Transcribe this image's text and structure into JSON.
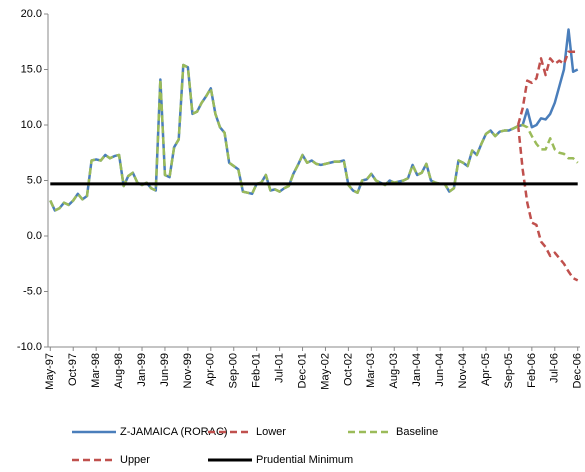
{
  "chart_data": {
    "type": "line",
    "categories": [
      "May-97",
      null,
      null,
      null,
      null,
      "Oct-97",
      null,
      null,
      null,
      null,
      "Mar-98",
      null,
      null,
      null,
      null,
      "Aug-98",
      null,
      null,
      null,
      null,
      "Jan-99",
      null,
      null,
      null,
      null,
      "Jun-99",
      null,
      null,
      null,
      null,
      "Nov-99",
      null,
      null,
      null,
      null,
      "Apr-00",
      null,
      null,
      null,
      null,
      "Sep-00",
      null,
      null,
      null,
      null,
      "Feb-01",
      null,
      null,
      null,
      null,
      "Jul-01",
      null,
      null,
      null,
      null,
      "Dec-01",
      null,
      null,
      null,
      null,
      "May-02",
      null,
      null,
      null,
      null,
      "Oct-02",
      null,
      null,
      null,
      null,
      "Mar-03",
      null,
      null,
      null,
      null,
      "Aug-03",
      null,
      null,
      null,
      null,
      "Jan-04",
      null,
      null,
      null,
      null,
      "Jun-04",
      null,
      null,
      null,
      null,
      "Nov-04",
      null,
      null,
      null,
      null,
      "Apr-05",
      null,
      null,
      null,
      null,
      "Sep-05",
      null,
      null,
      null,
      null,
      "Feb-06",
      null,
      null,
      null,
      null,
      "Jul-06",
      null,
      null,
      null,
      null,
      "Dec-06"
    ],
    "series": [
      {
        "name": "Z-JAMAICA (RORAC)",
        "color": "#4a7ebb",
        "dash": false,
        "values": [
          3.2,
          2.3,
          2.5,
          3.0,
          2.8,
          3.2,
          3.8,
          3.3,
          3.6,
          6.8,
          6.9,
          6.8,
          7.3,
          7.0,
          7.2,
          7.3,
          4.5,
          5.4,
          5.7,
          4.8,
          4.6,
          4.8,
          4.3,
          4.1,
          14.1,
          5.5,
          5.3,
          8.0,
          8.7,
          15.4,
          15.2,
          11.0,
          11.2,
          12.0,
          12.6,
          13.3,
          11.0,
          9.8,
          9.3,
          6.6,
          6.3,
          6.0,
          4.0,
          3.9,
          3.8,
          4.7,
          4.8,
          5.5,
          4.1,
          4.2,
          4.0,
          4.3,
          4.5,
          5.6,
          6.4,
          7.3,
          6.6,
          6.8,
          6.5,
          6.4,
          6.5,
          6.6,
          6.7,
          6.7,
          6.8,
          4.6,
          4.1,
          3.9,
          5.0,
          5.1,
          5.6,
          5.0,
          4.8,
          4.6,
          5.0,
          4.8,
          4.9,
          5.0,
          5.2,
          6.4,
          5.5,
          5.7,
          6.5,
          5.0,
          4.8,
          4.7,
          4.7,
          4.0,
          4.3,
          6.8,
          6.6,
          6.3,
          7.7,
          7.3,
          8.3,
          9.2,
          9.5,
          9.0,
          9.4,
          9.5,
          9.5,
          9.7,
          9.9,
          10.0,
          11.4,
          9.8,
          10.0,
          10.6,
          10.5,
          11.0,
          12.0,
          13.5,
          15.0,
          18.6,
          14.8,
          15.0
        ]
      },
      {
        "name": "Lower",
        "color": "#c0504d",
        "dash": true,
        "values": [
          null,
          null,
          null,
          null,
          null,
          null,
          null,
          null,
          null,
          null,
          null,
          null,
          null,
          null,
          null,
          null,
          null,
          null,
          null,
          null,
          null,
          null,
          null,
          null,
          null,
          null,
          null,
          null,
          null,
          null,
          null,
          null,
          null,
          null,
          null,
          null,
          null,
          null,
          null,
          null,
          null,
          null,
          null,
          null,
          null,
          null,
          null,
          null,
          null,
          null,
          null,
          null,
          null,
          null,
          null,
          null,
          null,
          null,
          null,
          null,
          null,
          null,
          null,
          null,
          null,
          null,
          null,
          null,
          null,
          null,
          null,
          null,
          null,
          null,
          null,
          null,
          null,
          null,
          null,
          null,
          null,
          null,
          null,
          null,
          null,
          null,
          null,
          null,
          null,
          null,
          null,
          null,
          null,
          null,
          null,
          null,
          null,
          null,
          null,
          null,
          null,
          null,
          10.0,
          6.0,
          3.0,
          1.2,
          1.0,
          -0.5,
          -1.0,
          -1.8,
          -1.5,
          -2.0,
          -2.5,
          -3.2,
          -3.8,
          -4.0
        ]
      },
      {
        "name": "Baseline",
        "color": "#9bbb59",
        "dash": true,
        "values": [
          3.2,
          2.3,
          2.5,
          3.0,
          2.8,
          3.2,
          3.8,
          3.3,
          3.6,
          6.8,
          6.9,
          6.8,
          7.3,
          7.0,
          7.2,
          7.3,
          4.5,
          5.4,
          5.7,
          4.8,
          4.6,
          4.8,
          4.3,
          4.1,
          14.1,
          5.5,
          5.3,
          8.0,
          8.7,
          15.4,
          15.2,
          11.0,
          11.2,
          12.0,
          12.6,
          13.3,
          11.0,
          9.8,
          9.3,
          6.6,
          6.3,
          6.0,
          4.0,
          3.9,
          3.8,
          4.7,
          4.8,
          5.5,
          4.1,
          4.2,
          4.0,
          4.3,
          4.5,
          5.6,
          6.4,
          7.3,
          6.6,
          6.8,
          6.5,
          6.4,
          6.5,
          6.6,
          6.7,
          6.7,
          6.8,
          4.6,
          4.1,
          3.9,
          5.0,
          5.1,
          5.6,
          5.0,
          4.8,
          4.6,
          5.0,
          4.8,
          4.9,
          5.0,
          5.2,
          6.4,
          5.5,
          5.7,
          6.5,
          5.0,
          4.8,
          4.7,
          4.7,
          4.0,
          4.3,
          6.8,
          6.6,
          6.3,
          7.7,
          7.3,
          8.3,
          9.2,
          9.5,
          9.0,
          9.4,
          9.5,
          9.5,
          9.7,
          9.9,
          10.0,
          9.8,
          9.0,
          8.3,
          7.8,
          7.8,
          8.8,
          7.8,
          7.5,
          7.4,
          7.0,
          7.0,
          6.6
        ]
      },
      {
        "name": "Upper",
        "color": "#c0504d",
        "dash": true,
        "values": [
          null,
          null,
          null,
          null,
          null,
          null,
          null,
          null,
          null,
          null,
          null,
          null,
          null,
          null,
          null,
          null,
          null,
          null,
          null,
          null,
          null,
          null,
          null,
          null,
          null,
          null,
          null,
          null,
          null,
          null,
          null,
          null,
          null,
          null,
          null,
          null,
          null,
          null,
          null,
          null,
          null,
          null,
          null,
          null,
          null,
          null,
          null,
          null,
          null,
          null,
          null,
          null,
          null,
          null,
          null,
          null,
          null,
          null,
          null,
          null,
          null,
          null,
          null,
          null,
          null,
          null,
          null,
          null,
          null,
          null,
          null,
          null,
          null,
          null,
          null,
          null,
          null,
          null,
          null,
          null,
          null,
          null,
          null,
          null,
          null,
          null,
          null,
          null,
          null,
          null,
          null,
          null,
          null,
          null,
          null,
          null,
          null,
          null,
          null,
          null,
          null,
          null,
          10.0,
          11.5,
          14.0,
          13.8,
          14.2,
          16.0,
          14.5,
          16.0,
          15.5,
          15.8,
          15.5,
          16.6,
          16.6,
          16.6
        ]
      },
      {
        "name": "Prudential Minimum",
        "color": "#000000",
        "dash": false,
        "values": [
          4.7,
          4.7,
          4.7,
          4.7,
          4.7,
          4.7,
          4.7,
          4.7,
          4.7,
          4.7,
          4.7,
          4.7,
          4.7,
          4.7,
          4.7,
          4.7,
          4.7,
          4.7,
          4.7,
          4.7,
          4.7,
          4.7,
          4.7,
          4.7,
          4.7,
          4.7,
          4.7,
          4.7,
          4.7,
          4.7,
          4.7,
          4.7,
          4.7,
          4.7,
          4.7,
          4.7,
          4.7,
          4.7,
          4.7,
          4.7,
          4.7,
          4.7,
          4.7,
          4.7,
          4.7,
          4.7,
          4.7,
          4.7,
          4.7,
          4.7,
          4.7,
          4.7,
          4.7,
          4.7,
          4.7,
          4.7,
          4.7,
          4.7,
          4.7,
          4.7,
          4.7,
          4.7,
          4.7,
          4.7,
          4.7,
          4.7,
          4.7,
          4.7,
          4.7,
          4.7,
          4.7,
          4.7,
          4.7,
          4.7,
          4.7,
          4.7,
          4.7,
          4.7,
          4.7,
          4.7,
          4.7,
          4.7,
          4.7,
          4.7,
          4.7,
          4.7,
          4.7,
          4.7,
          4.7,
          4.7,
          4.7,
          4.7,
          4.7,
          4.7,
          4.7,
          4.7,
          4.7,
          4.7,
          4.7,
          4.7,
          4.7,
          4.7,
          4.7,
          4.7,
          4.7,
          4.7,
          4.7,
          4.7,
          4.7,
          4.7,
          4.7,
          4.7,
          4.7,
          4.7,
          4.7,
          4.7
        ]
      }
    ],
    "ylim": [
      -10,
      20
    ],
    "yticks": [
      {
        "value": -10,
        "label": "-10.0"
      },
      {
        "value": -5,
        "label": "-5.0"
      },
      {
        "value": 0,
        "label": "0.0"
      },
      {
        "value": 5,
        "label": "5.0"
      },
      {
        "value": 10,
        "label": "10.0"
      },
      {
        "value": 15,
        "label": "15.0"
      },
      {
        "value": 20,
        "label": "20.0"
      }
    ],
    "grid": false
  }
}
